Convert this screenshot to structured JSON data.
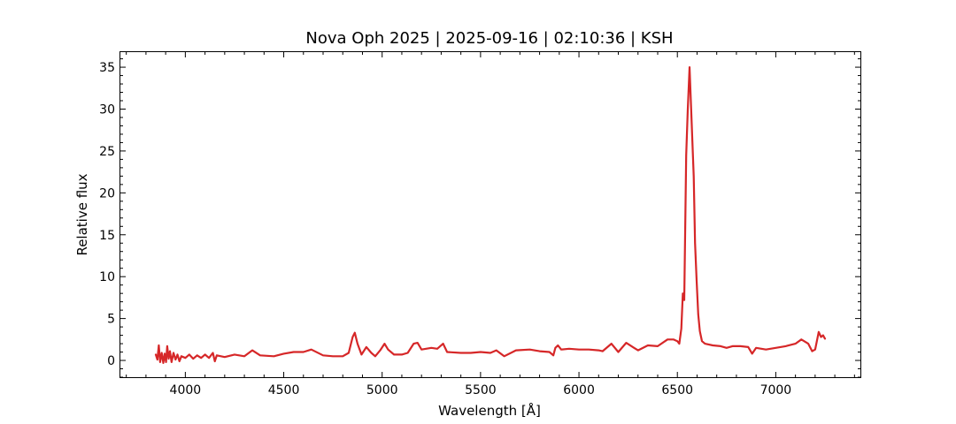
{
  "chart_data": {
    "type": "line",
    "title": "Nova Oph 2025 | 2025-09-16 | 02:10:36 | KSH",
    "xlabel": "Wavelength [Å]",
    "ylabel": "Relative flux",
    "xlim": [
      3670,
      7430
    ],
    "ylim": [
      -2,
      36.8
    ],
    "xticks": [
      4000,
      4500,
      5000,
      5500,
      6000,
      6500,
      7000
    ],
    "xtick_labels": [
      "4000",
      "4500",
      "5000",
      "5500",
      "6000",
      "6500",
      "7000"
    ],
    "yticks": [
      0,
      5,
      10,
      15,
      20,
      25,
      30,
      35
    ],
    "ytick_labels": [
      "0",
      "5",
      "10",
      "15",
      "20",
      "25",
      "30",
      "35"
    ],
    "x_minor_step": 100,
    "y_minor_step": 1,
    "grid": false,
    "tick_direction": "in",
    "series": [
      {
        "color": "#d62728",
        "points": [
          [
            3850,
            0.7
          ],
          [
            3858,
            0.1
          ],
          [
            3865,
            1.8
          ],
          [
            3872,
            -0.2
          ],
          [
            3880,
            0.9
          ],
          [
            3888,
            -0.3
          ],
          [
            3895,
            0.8
          ],
          [
            3902,
            -0.2
          ],
          [
            3908,
            1.7
          ],
          [
            3915,
            0.2
          ],
          [
            3922,
            1.1
          ],
          [
            3930,
            -0.2
          ],
          [
            3940,
            0.9
          ],
          [
            3950,
            0.1
          ],
          [
            3960,
            0.7
          ],
          [
            3970,
            -0.1
          ],
          [
            3980,
            0.5
          ],
          [
            4000,
            0.3
          ],
          [
            4020,
            0.7
          ],
          [
            4040,
            0.2
          ],
          [
            4060,
            0.6
          ],
          [
            4080,
            0.3
          ],
          [
            4100,
            0.7
          ],
          [
            4120,
            0.3
          ],
          [
            4140,
            0.9
          ],
          [
            4150,
            -0.1
          ],
          [
            4160,
            0.6
          ],
          [
            4200,
            0.4
          ],
          [
            4250,
            0.7
          ],
          [
            4300,
            0.5
          ],
          [
            4340,
            1.2
          ],
          [
            4380,
            0.6
          ],
          [
            4450,
            0.5
          ],
          [
            4500,
            0.8
          ],
          [
            4550,
            1.0
          ],
          [
            4600,
            1.0
          ],
          [
            4640,
            1.3
          ],
          [
            4700,
            0.6
          ],
          [
            4750,
            0.5
          ],
          [
            4800,
            0.5
          ],
          [
            4830,
            0.9
          ],
          [
            4850,
            2.8
          ],
          [
            4861,
            3.3
          ],
          [
            4875,
            2.0
          ],
          [
            4895,
            0.7
          ],
          [
            4920,
            1.6
          ],
          [
            4945,
            0.9
          ],
          [
            4965,
            0.5
          ],
          [
            4990,
            1.2
          ],
          [
            5012,
            2.0
          ],
          [
            5030,
            1.3
          ],
          [
            5060,
            0.7
          ],
          [
            5100,
            0.7
          ],
          [
            5130,
            0.9
          ],
          [
            5160,
            2.0
          ],
          [
            5180,
            2.1
          ],
          [
            5200,
            1.3
          ],
          [
            5250,
            1.5
          ],
          [
            5280,
            1.4
          ],
          [
            5310,
            2.0
          ],
          [
            5330,
            1.0
          ],
          [
            5400,
            0.9
          ],
          [
            5450,
            0.9
          ],
          [
            5500,
            1.0
          ],
          [
            5550,
            0.9
          ],
          [
            5580,
            1.2
          ],
          [
            5620,
            0.5
          ],
          [
            5680,
            1.2
          ],
          [
            5750,
            1.3
          ],
          [
            5800,
            1.1
          ],
          [
            5850,
            1.0
          ],
          [
            5870,
            0.6
          ],
          [
            5880,
            1.5
          ],
          [
            5893,
            1.8
          ],
          [
            5910,
            1.3
          ],
          [
            5950,
            1.4
          ],
          [
            6000,
            1.3
          ],
          [
            6050,
            1.3
          ],
          [
            6100,
            1.2
          ],
          [
            6120,
            1.1
          ],
          [
            6165,
            2.0
          ],
          [
            6200,
            1.0
          ],
          [
            6240,
            2.1
          ],
          [
            6280,
            1.5
          ],
          [
            6300,
            1.2
          ],
          [
            6350,
            1.8
          ],
          [
            6400,
            1.7
          ],
          [
            6450,
            2.5
          ],
          [
            6480,
            2.5
          ],
          [
            6500,
            2.3
          ],
          [
            6510,
            2.0
          ],
          [
            6520,
            3.8
          ],
          [
            6528,
            8.0
          ],
          [
            6535,
            7.2
          ],
          [
            6545,
            24.5
          ],
          [
            6553,
            30.0
          ],
          [
            6562,
            35.0
          ],
          [
            6570,
            30.0
          ],
          [
            6578,
            25.0
          ],
          [
            6583,
            22.0
          ],
          [
            6590,
            14.0
          ],
          [
            6598,
            9.5
          ],
          [
            6606,
            5.5
          ],
          [
            6614,
            3.5
          ],
          [
            6625,
            2.3
          ],
          [
            6640,
            2.0
          ],
          [
            6680,
            1.8
          ],
          [
            6720,
            1.7
          ],
          [
            6750,
            1.5
          ],
          [
            6780,
            1.7
          ],
          [
            6820,
            1.7
          ],
          [
            6860,
            1.6
          ],
          [
            6880,
            0.8
          ],
          [
            6900,
            1.5
          ],
          [
            6950,
            1.3
          ],
          [
            7000,
            1.5
          ],
          [
            7050,
            1.7
          ],
          [
            7100,
            2.0
          ],
          [
            7130,
            2.5
          ],
          [
            7165,
            2.0
          ],
          [
            7185,
            1.1
          ],
          [
            7200,
            1.3
          ],
          [
            7218,
            3.4
          ],
          [
            7230,
            2.8
          ],
          [
            7240,
            3.0
          ],
          [
            7250,
            2.6
          ]
        ]
      }
    ]
  }
}
